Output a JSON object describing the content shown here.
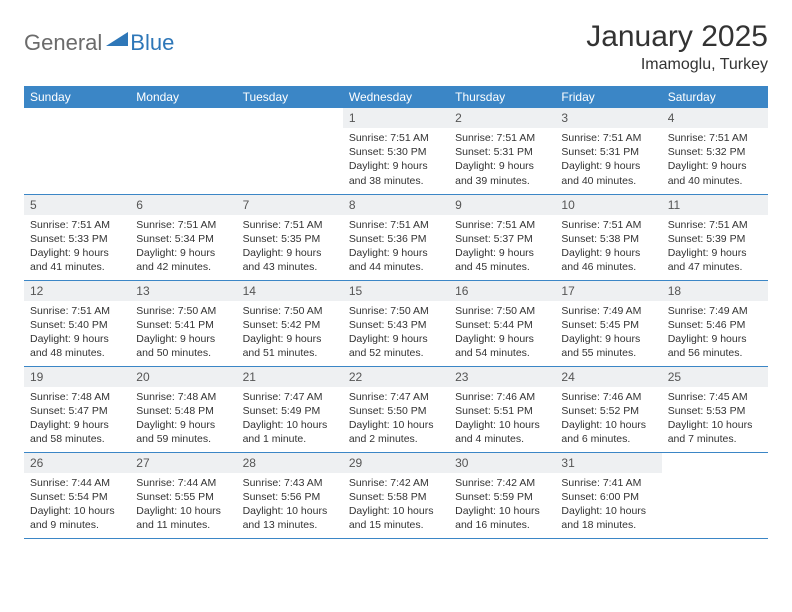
{
  "logo": {
    "part1": "General",
    "part2": "Blue"
  },
  "title": "January 2025",
  "location": "Imamoglu, Turkey",
  "colors": {
    "header_bg": "#3b86c6",
    "header_text": "#ffffff",
    "daynum_bg": "#eef0f2",
    "border": "#3b86c6",
    "logo_gray": "#6b6b6b",
    "logo_blue": "#2e77b8"
  },
  "weekdays": [
    "Sunday",
    "Monday",
    "Tuesday",
    "Wednesday",
    "Thursday",
    "Friday",
    "Saturday"
  ],
  "weeks": [
    [
      null,
      null,
      null,
      {
        "d": "1",
        "sr": "7:51 AM",
        "ss": "5:30 PM",
        "dl": "9 hours and 38 minutes."
      },
      {
        "d": "2",
        "sr": "7:51 AM",
        "ss": "5:31 PM",
        "dl": "9 hours and 39 minutes."
      },
      {
        "d": "3",
        "sr": "7:51 AM",
        "ss": "5:31 PM",
        "dl": "9 hours and 40 minutes."
      },
      {
        "d": "4",
        "sr": "7:51 AM",
        "ss": "5:32 PM",
        "dl": "9 hours and 40 minutes."
      }
    ],
    [
      {
        "d": "5",
        "sr": "7:51 AM",
        "ss": "5:33 PM",
        "dl": "9 hours and 41 minutes."
      },
      {
        "d": "6",
        "sr": "7:51 AM",
        "ss": "5:34 PM",
        "dl": "9 hours and 42 minutes."
      },
      {
        "d": "7",
        "sr": "7:51 AM",
        "ss": "5:35 PM",
        "dl": "9 hours and 43 minutes."
      },
      {
        "d": "8",
        "sr": "7:51 AM",
        "ss": "5:36 PM",
        "dl": "9 hours and 44 minutes."
      },
      {
        "d": "9",
        "sr": "7:51 AM",
        "ss": "5:37 PM",
        "dl": "9 hours and 45 minutes."
      },
      {
        "d": "10",
        "sr": "7:51 AM",
        "ss": "5:38 PM",
        "dl": "9 hours and 46 minutes."
      },
      {
        "d": "11",
        "sr": "7:51 AM",
        "ss": "5:39 PM",
        "dl": "9 hours and 47 minutes."
      }
    ],
    [
      {
        "d": "12",
        "sr": "7:51 AM",
        "ss": "5:40 PM",
        "dl": "9 hours and 48 minutes."
      },
      {
        "d": "13",
        "sr": "7:50 AM",
        "ss": "5:41 PM",
        "dl": "9 hours and 50 minutes."
      },
      {
        "d": "14",
        "sr": "7:50 AM",
        "ss": "5:42 PM",
        "dl": "9 hours and 51 minutes."
      },
      {
        "d": "15",
        "sr": "7:50 AM",
        "ss": "5:43 PM",
        "dl": "9 hours and 52 minutes."
      },
      {
        "d": "16",
        "sr": "7:50 AM",
        "ss": "5:44 PM",
        "dl": "9 hours and 54 minutes."
      },
      {
        "d": "17",
        "sr": "7:49 AM",
        "ss": "5:45 PM",
        "dl": "9 hours and 55 minutes."
      },
      {
        "d": "18",
        "sr": "7:49 AM",
        "ss": "5:46 PM",
        "dl": "9 hours and 56 minutes."
      }
    ],
    [
      {
        "d": "19",
        "sr": "7:48 AM",
        "ss": "5:47 PM",
        "dl": "9 hours and 58 minutes."
      },
      {
        "d": "20",
        "sr": "7:48 AM",
        "ss": "5:48 PM",
        "dl": "9 hours and 59 minutes."
      },
      {
        "d": "21",
        "sr": "7:47 AM",
        "ss": "5:49 PM",
        "dl": "10 hours and 1 minute."
      },
      {
        "d": "22",
        "sr": "7:47 AM",
        "ss": "5:50 PM",
        "dl": "10 hours and 2 minutes."
      },
      {
        "d": "23",
        "sr": "7:46 AM",
        "ss": "5:51 PM",
        "dl": "10 hours and 4 minutes."
      },
      {
        "d": "24",
        "sr": "7:46 AM",
        "ss": "5:52 PM",
        "dl": "10 hours and 6 minutes."
      },
      {
        "d": "25",
        "sr": "7:45 AM",
        "ss": "5:53 PM",
        "dl": "10 hours and 7 minutes."
      }
    ],
    [
      {
        "d": "26",
        "sr": "7:44 AM",
        "ss": "5:54 PM",
        "dl": "10 hours and 9 minutes."
      },
      {
        "d": "27",
        "sr": "7:44 AM",
        "ss": "5:55 PM",
        "dl": "10 hours and 11 minutes."
      },
      {
        "d": "28",
        "sr": "7:43 AM",
        "ss": "5:56 PM",
        "dl": "10 hours and 13 minutes."
      },
      {
        "d": "29",
        "sr": "7:42 AM",
        "ss": "5:58 PM",
        "dl": "10 hours and 15 minutes."
      },
      {
        "d": "30",
        "sr": "7:42 AM",
        "ss": "5:59 PM",
        "dl": "10 hours and 16 minutes."
      },
      {
        "d": "31",
        "sr": "7:41 AM",
        "ss": "6:00 PM",
        "dl": "10 hours and 18 minutes."
      },
      null
    ]
  ],
  "labels": {
    "sunrise": "Sunrise:",
    "sunset": "Sunset:",
    "daylight": "Daylight:"
  }
}
